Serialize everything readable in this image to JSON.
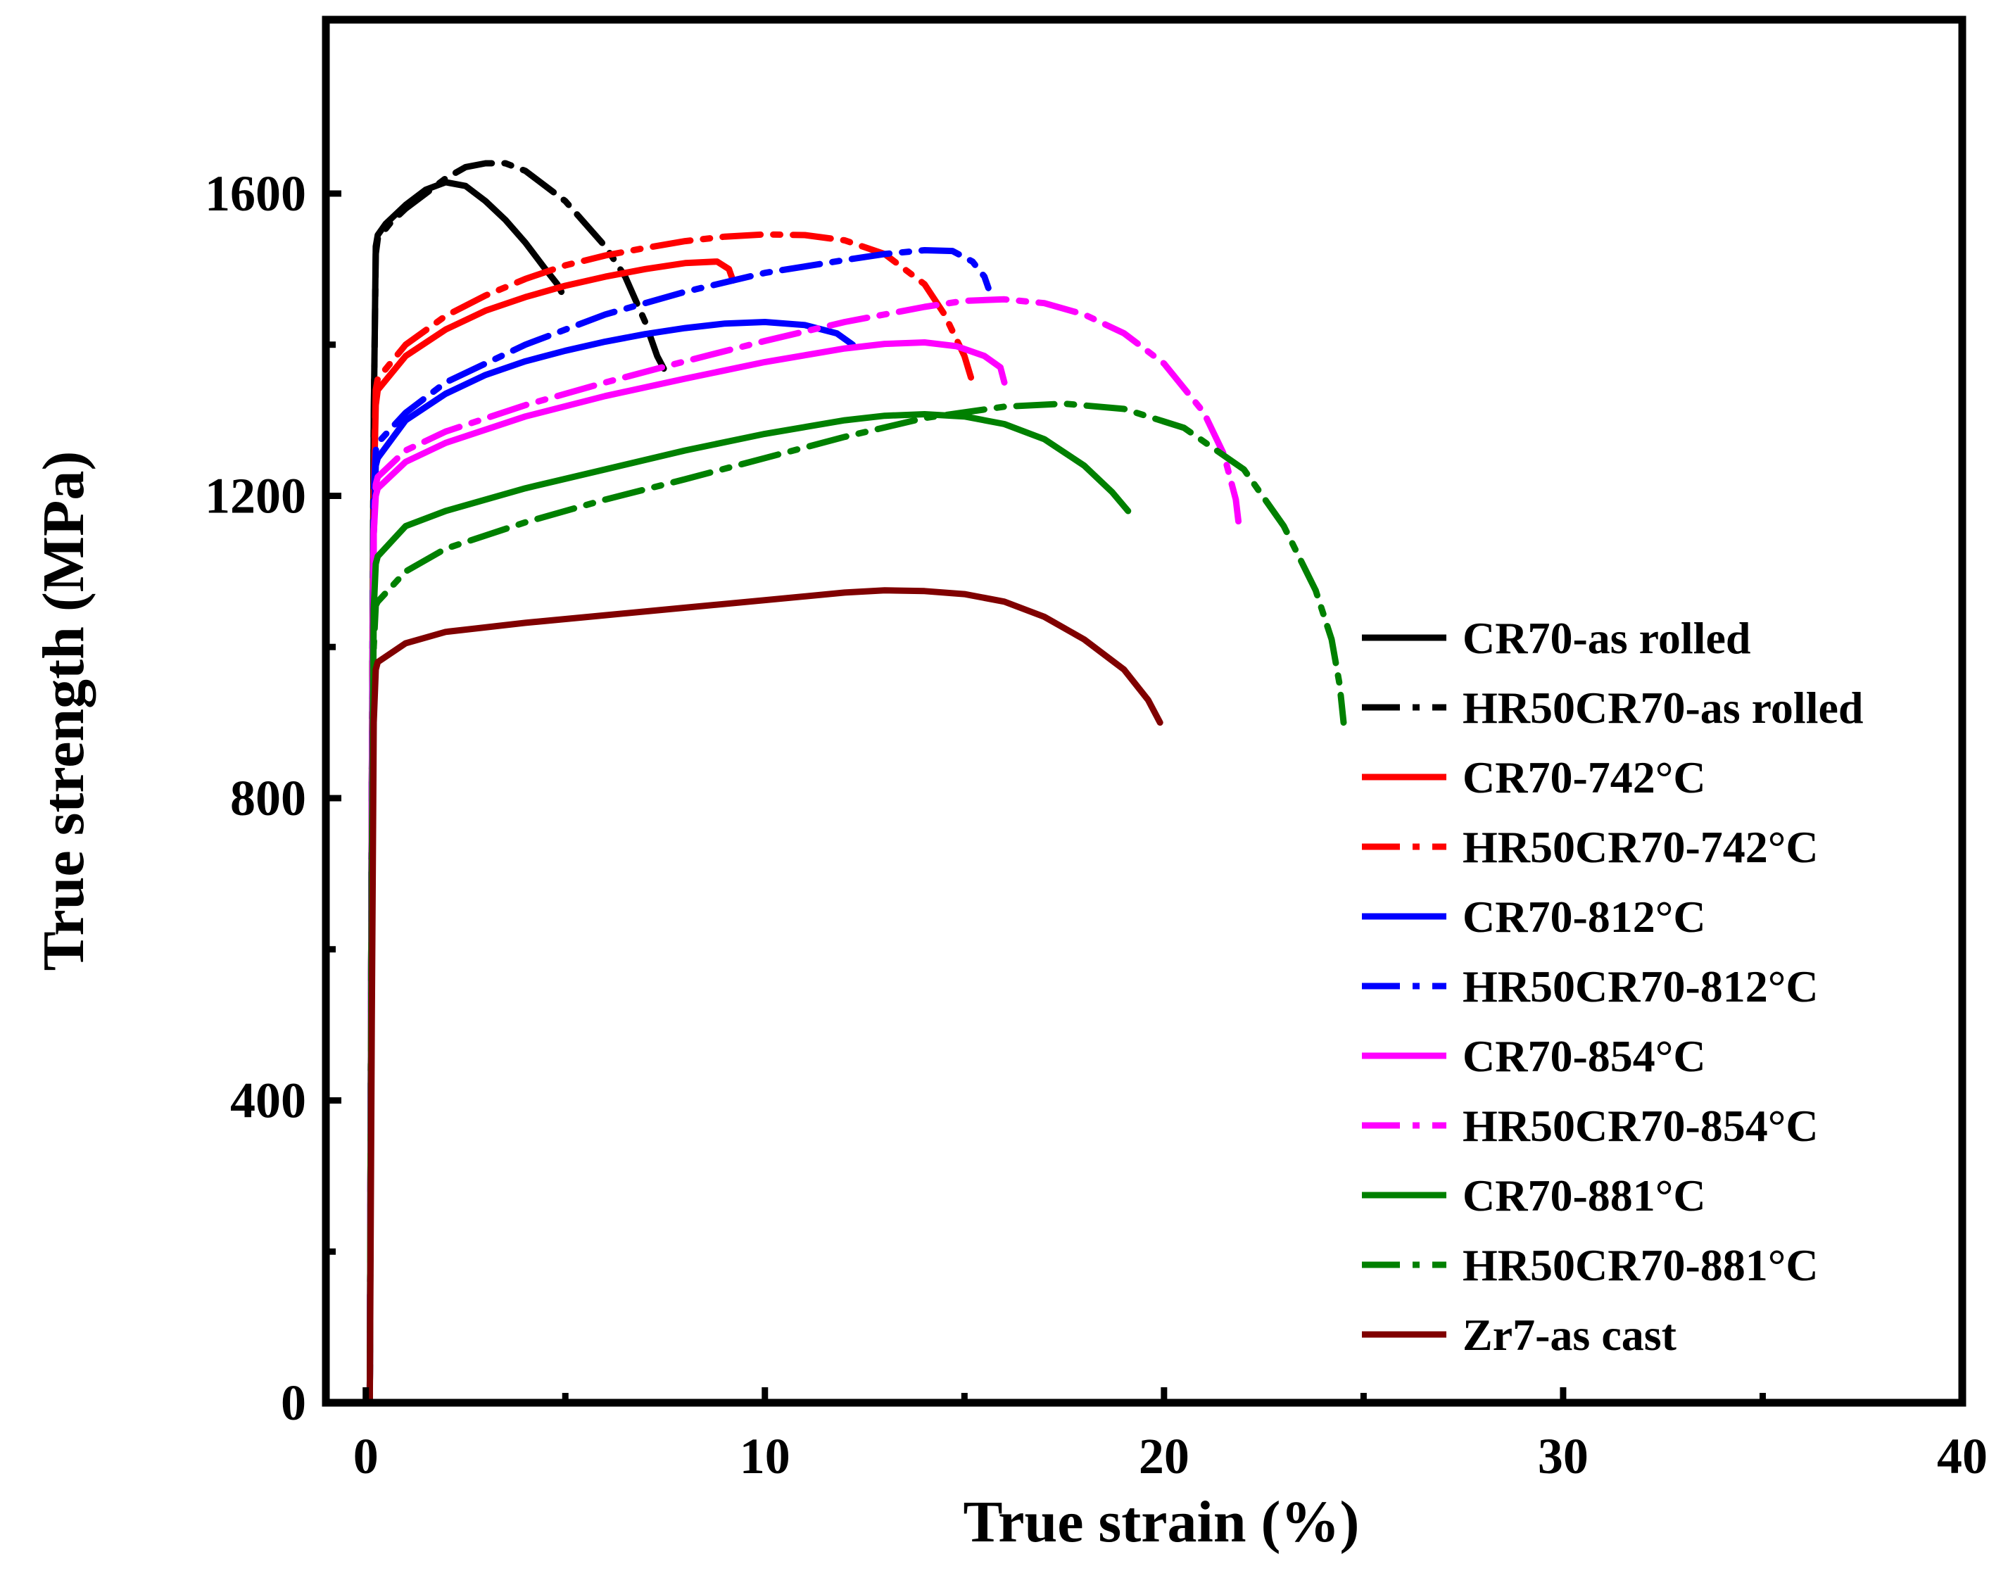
{
  "chart_data": {
    "type": "line",
    "title": "",
    "xlabel": "True strain (%)",
    "ylabel": "True strength (MPa)",
    "xlim": [
      -1,
      40
    ],
    "ylim": [
      0,
      1830
    ],
    "xticks": [
      0,
      10,
      20,
      30,
      40
    ],
    "xtick_labels": [
      "0",
      "10",
      "20",
      "30",
      "40"
    ],
    "yticks": [
      0,
      400,
      800,
      1200,
      1600
    ],
    "ytick_labels": [
      "0",
      "400",
      "800",
      "1200",
      "1600"
    ],
    "grid": false,
    "legend_position": "right",
    "series": [
      {
        "name": "CR70-as rolled",
        "color": "#000000",
        "dash": "solid",
        "x": [
          0.1,
          0.15,
          0.2,
          0.25,
          0.3,
          0.5,
          1.0,
          1.5,
          2.0,
          2.5,
          3.0,
          3.5,
          4.0,
          4.5,
          4.8,
          4.9
        ],
        "y": [
          0,
          800,
          1300,
          1530,
          1545,
          1560,
          1585,
          1605,
          1615,
          1610,
          1590,
          1565,
          1535,
          1500,
          1480,
          1470
        ]
      },
      {
        "name": "HR50CR70-as rolled",
        "color": "#000000",
        "dash": "dashdot",
        "x": [
          0.1,
          0.15,
          0.2,
          0.25,
          0.3,
          0.6,
          1.0,
          1.5,
          2.0,
          2.5,
          3.0,
          3.5,
          4.0,
          5.0,
          6.0,
          6.5,
          7.0,
          7.3,
          7.5
        ],
        "y": [
          0,
          800,
          1300,
          1520,
          1540,
          1560,
          1580,
          1600,
          1620,
          1635,
          1640,
          1640,
          1630,
          1590,
          1530,
          1490,
          1430,
          1385,
          1365
        ]
      },
      {
        "name": "CR70-742°C",
        "color": "#ff0000",
        "dash": "solid",
        "x": [
          0.1,
          0.15,
          0.2,
          0.25,
          0.3,
          1.0,
          2.0,
          3.0,
          4.0,
          5.0,
          6.0,
          7.0,
          8.0,
          8.8,
          9.1,
          9.2
        ],
        "y": [
          0,
          800,
          1200,
          1320,
          1340,
          1385,
          1420,
          1445,
          1463,
          1478,
          1490,
          1500,
          1508,
          1510,
          1500,
          1485
        ]
      },
      {
        "name": "HR50CR70-742°C",
        "color": "#ff0000",
        "dash": "dashdot",
        "x": [
          0.1,
          0.15,
          0.2,
          0.25,
          0.3,
          1.0,
          2.0,
          3.0,
          4.0,
          5.0,
          6.0,
          7.0,
          8.0,
          9.0,
          10.0,
          11.0,
          12.0,
          13.0,
          14.0,
          14.5,
          15.0,
          15.2
        ],
        "y": [
          0,
          800,
          1200,
          1340,
          1355,
          1400,
          1438,
          1465,
          1487,
          1505,
          1518,
          1528,
          1537,
          1543,
          1546,
          1545,
          1538,
          1520,
          1480,
          1440,
          1385,
          1350
        ]
      },
      {
        "name": "CR70-812°C",
        "color": "#0000ff",
        "dash": "solid",
        "x": [
          0.1,
          0.15,
          0.2,
          0.25,
          0.3,
          1.0,
          2.0,
          3.0,
          4.0,
          5.0,
          6.0,
          7.0,
          8.0,
          9.0,
          10.0,
          11.0,
          11.8,
          12.2
        ],
        "y": [
          0,
          800,
          1150,
          1240,
          1250,
          1300,
          1335,
          1360,
          1378,
          1392,
          1404,
          1414,
          1422,
          1428,
          1430,
          1426,
          1415,
          1400
        ]
      },
      {
        "name": "HR50CR70-812°C",
        "color": "#0000ff",
        "dash": "dashdot",
        "x": [
          0.1,
          0.15,
          0.2,
          0.25,
          0.3,
          1.0,
          2.0,
          4.0,
          6.0,
          8.0,
          10.0,
          12.0,
          13.0,
          14.0,
          14.7,
          15.2,
          15.5,
          15.6
        ],
        "y": [
          0,
          800,
          1200,
          1260,
          1270,
          1310,
          1350,
          1400,
          1440,
          1470,
          1495,
          1512,
          1520,
          1525,
          1524,
          1510,
          1490,
          1475
        ]
      },
      {
        "name": "CR70-854°C",
        "color": "#ff00ff",
        "dash": "solid",
        "x": [
          0.1,
          0.15,
          0.2,
          0.25,
          0.3,
          1.0,
          2.0,
          4.0,
          6.0,
          8.0,
          10.0,
          12.0,
          13.0,
          14.0,
          14.8,
          15.5,
          15.9,
          16.0
        ],
        "y": [
          0,
          800,
          1150,
          1200,
          1210,
          1245,
          1270,
          1305,
          1332,
          1355,
          1377,
          1395,
          1401,
          1403,
          1398,
          1385,
          1370,
          1350
        ]
      },
      {
        "name": "HR50CR70-854°C",
        "color": "#ff00ff",
        "dash": "dashdot",
        "x": [
          0.1,
          0.15,
          0.2,
          0.25,
          0.3,
          1.0,
          2.0,
          4.0,
          6.0,
          8.0,
          10.0,
          12.0,
          14.0,
          15.0,
          16.0,
          17.0,
          18.0,
          19.0,
          20.0,
          21.0,
          21.5,
          21.8,
          21.9
        ],
        "y": [
          0,
          800,
          1150,
          1215,
          1225,
          1260,
          1285,
          1320,
          1350,
          1378,
          1405,
          1430,
          1450,
          1458,
          1460,
          1455,
          1440,
          1415,
          1375,
          1310,
          1255,
          1195,
          1150
        ]
      },
      {
        "name": "CR70-881°C",
        "color": "#008000",
        "dash": "solid",
        "x": [
          0.1,
          0.15,
          0.2,
          0.25,
          0.3,
          1.0,
          2.0,
          4.0,
          6.0,
          8.0,
          10.0,
          12.0,
          13.0,
          14.0,
          15.0,
          16.0,
          17.0,
          18.0,
          18.7,
          19.1
        ],
        "y": [
          0,
          700,
          1050,
          1110,
          1120,
          1160,
          1180,
          1210,
          1235,
          1260,
          1282,
          1300,
          1306,
          1308,
          1305,
          1295,
          1275,
          1240,
          1205,
          1180
        ]
      },
      {
        "name": "HR50CR70-881°C",
        "color": "#008000",
        "dash": "dashdot",
        "x": [
          0.1,
          0.15,
          0.2,
          0.25,
          0.3,
          1.0,
          2.0,
          4.0,
          6.0,
          8.0,
          10.0,
          12.0,
          14.0,
          16.0,
          17.5,
          19.0,
          20.5,
          22.0,
          23.0,
          23.8,
          24.2,
          24.4,
          24.5
        ],
        "y": [
          0,
          700,
          1000,
          1055,
          1060,
          1100,
          1130,
          1165,
          1195,
          1222,
          1250,
          1278,
          1303,
          1318,
          1322,
          1315,
          1290,
          1235,
          1160,
          1075,
          1010,
          950,
          900
        ]
      },
      {
        "name": "Zr7-as cast",
        "color": "#800000",
        "dash": "solid",
        "x": [
          0.1,
          0.15,
          0.2,
          0.25,
          0.3,
          1.0,
          2.0,
          4.0,
          6.0,
          8.0,
          10.0,
          12.0,
          13.0,
          14.0,
          15.0,
          16.0,
          17.0,
          18.0,
          19.0,
          19.6,
          19.9
        ],
        "y": [
          0,
          500,
          900,
          970,
          980,
          1005,
          1020,
          1032,
          1042,
          1052,
          1062,
          1072,
          1075,
          1074,
          1070,
          1060,
          1040,
          1010,
          970,
          930,
          900
        ]
      }
    ]
  }
}
